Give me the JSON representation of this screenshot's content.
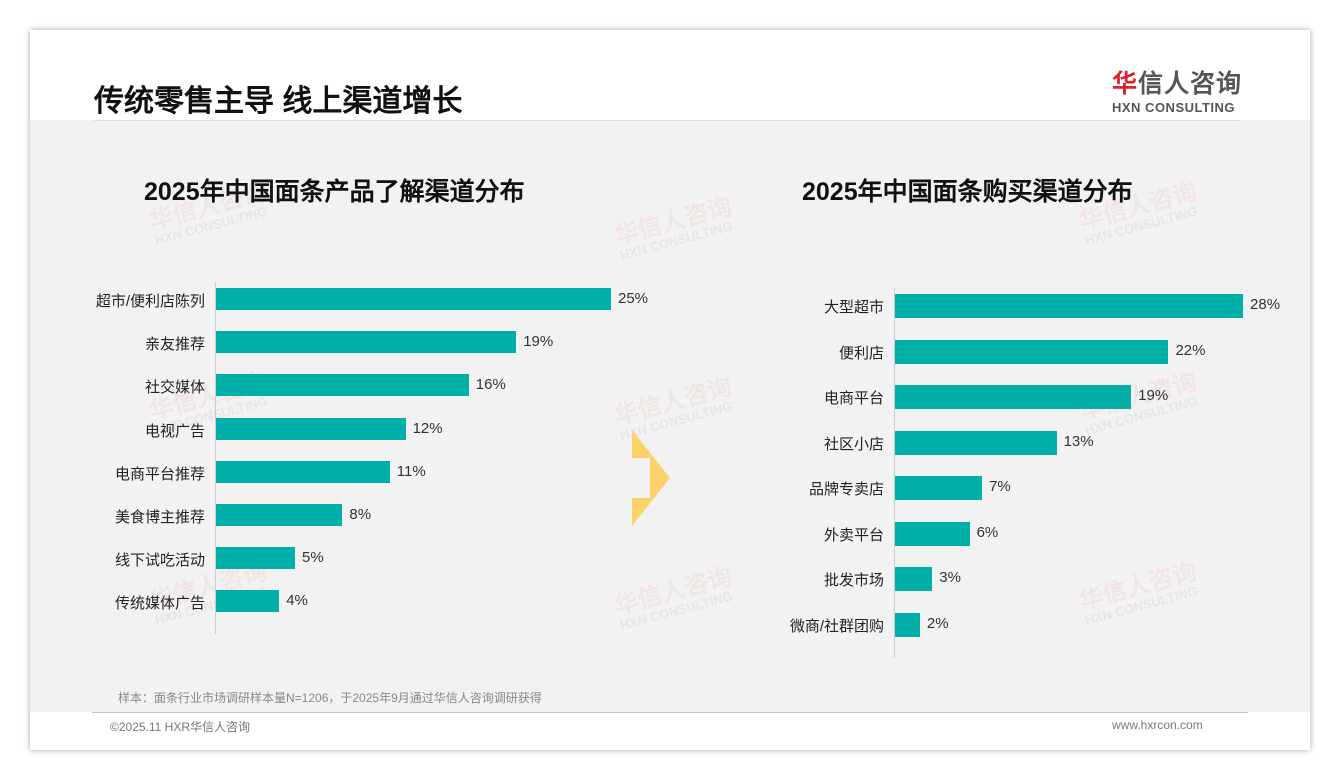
{
  "header": {
    "title": "传统零售主导 线上渠道增长",
    "logo_cn_red": "华",
    "logo_cn": "信人咨询",
    "logo_en": "HXN CONSULTING"
  },
  "watermark": {
    "cn": "华信人咨询",
    "en": "HXN CONSULTING"
  },
  "chart_data": [
    {
      "type": "bar",
      "orientation": "horizontal",
      "title": "2025年中国面条产品了解渠道分布",
      "unit": "%",
      "categories": [
        "超市/便利店陈列",
        "亲友推荐",
        "社交媒体",
        "电视广告",
        "电商平台推荐",
        "美食博主推荐",
        "线下试吃活动",
        "传统媒体广告"
      ],
      "values": [
        25,
        19,
        16,
        12,
        11,
        8,
        5,
        4
      ],
      "labels": [
        "25%",
        "19%",
        "16%",
        "12%",
        "11%",
        "8%",
        "5%",
        "4%"
      ],
      "color": "#00b0a8"
    },
    {
      "type": "bar",
      "orientation": "horizontal",
      "title": "2025年中国面条购买渠道分布",
      "unit": "%",
      "categories": [
        "大型超市",
        "便利店",
        "电商平台",
        "社区小店",
        "品牌专卖店",
        "外卖平台",
        "批发市场",
        "微商/社群团购"
      ],
      "values": [
        28,
        22,
        19,
        13,
        7,
        6,
        3,
        2
      ],
      "labels": [
        "28%",
        "22%",
        "19%",
        "13%",
        "7%",
        "6%",
        "3%",
        "2%"
      ],
      "color": "#00b0a8"
    }
  ],
  "footer": {
    "note": "样本：面条行业市场调研样本量N=1206，于2025年9月通过华信人咨询调研获得",
    "copyright": "©2025.11 HXR华信人咨询",
    "website": "www.hxrcon.com"
  }
}
